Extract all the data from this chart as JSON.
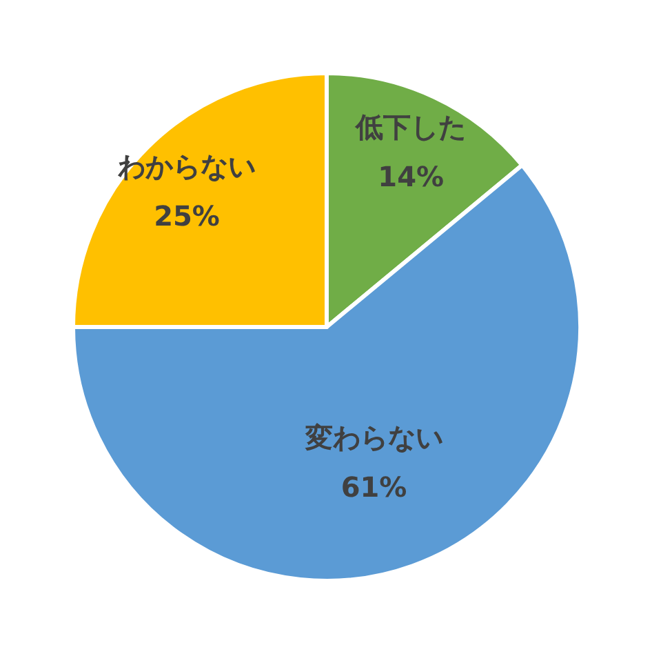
{
  "chart_data": {
    "type": "pie",
    "categories": [
      "低下した",
      "変わらない",
      "わからない"
    ],
    "values": [
      14,
      61,
      25
    ],
    "colors": [
      "#70ad47",
      "#5b9bd5",
      "#ffc000"
    ],
    "value_labels": [
      "14%",
      "61%",
      "25%"
    ]
  }
}
